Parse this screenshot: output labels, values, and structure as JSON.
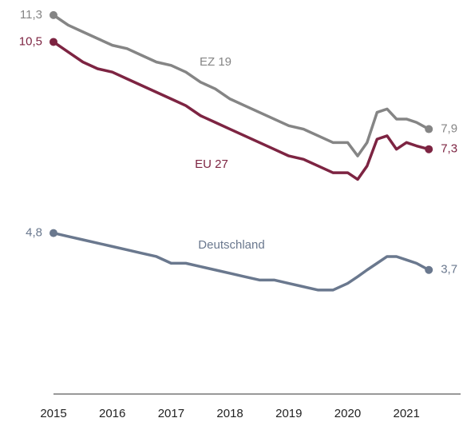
{
  "chart_data": {
    "type": "line",
    "x": [
      2015,
      2015.25,
      2015.5,
      2015.75,
      2016,
      2016.25,
      2016.5,
      2016.75,
      2017,
      2017.25,
      2017.5,
      2017.75,
      2018,
      2018.25,
      2018.5,
      2018.75,
      2019,
      2019.25,
      2019.5,
      2019.75,
      2020,
      2020.17,
      2020.33,
      2020.5,
      2020.67,
      2020.83,
      2021,
      2021.17,
      2021.38
    ],
    "xlim": [
      2015,
      2021.92
    ],
    "xticks": [
      2015,
      2016,
      2017,
      2018,
      2019,
      2020,
      2021
    ],
    "ylim": [
      0,
      11.75
    ],
    "series": [
      {
        "name": "EZ 19",
        "color": "#858585",
        "values": [
          11.3,
          11.0,
          10.8,
          10.6,
          10.4,
          10.3,
          10.1,
          9.9,
          9.8,
          9.6,
          9.3,
          9.1,
          8.8,
          8.6,
          8.4,
          8.2,
          8.0,
          7.9,
          7.7,
          7.5,
          7.5,
          7.1,
          7.5,
          8.4,
          8.5,
          8.2,
          8.2,
          8.1,
          7.9
        ],
        "value_labels": [
          "11,3",
          null,
          null,
          null,
          null,
          null,
          null,
          null,
          null,
          null,
          null,
          null,
          null,
          null,
          null,
          null,
          null,
          null,
          null,
          null,
          null,
          null,
          null,
          null,
          null,
          null,
          null,
          null,
          "7,9"
        ]
      },
      {
        "name": "EU 27",
        "color": "#7d2442",
        "values": [
          10.5,
          10.2,
          9.9,
          9.7,
          9.6,
          9.4,
          9.2,
          9.0,
          8.8,
          8.6,
          8.3,
          8.1,
          7.9,
          7.7,
          7.5,
          7.3,
          7.1,
          7.0,
          6.8,
          6.6,
          6.6,
          6.4,
          6.8,
          7.6,
          7.7,
          7.3,
          7.5,
          7.4,
          7.3
        ],
        "value_labels": [
          "10,5",
          null,
          null,
          null,
          null,
          null,
          null,
          null,
          null,
          null,
          null,
          null,
          null,
          null,
          null,
          null,
          null,
          null,
          null,
          null,
          null,
          null,
          null,
          null,
          null,
          null,
          null,
          null,
          "7,3"
        ]
      },
      {
        "name": "Deutschland",
        "color": "#6a788e",
        "values": [
          4.8,
          4.7,
          4.6,
          4.5,
          4.4,
          4.3,
          4.2,
          4.1,
          3.9,
          3.9,
          3.8,
          3.7,
          3.6,
          3.5,
          3.4,
          3.4,
          3.3,
          3.2,
          3.1,
          3.1,
          3.3,
          3.5,
          3.7,
          3.9,
          4.1,
          4.1,
          4.0,
          3.9,
          3.7
        ],
        "value_labels": [
          "4,8",
          null,
          null,
          null,
          null,
          null,
          null,
          null,
          null,
          null,
          null,
          null,
          null,
          null,
          null,
          null,
          null,
          null,
          null,
          null,
          null,
          null,
          null,
          null,
          null,
          null,
          null,
          null,
          "3,7"
        ]
      }
    ]
  }
}
